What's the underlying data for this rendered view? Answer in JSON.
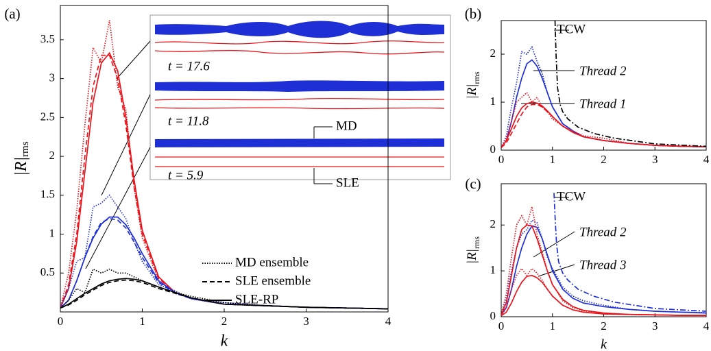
{
  "chart_data": [
    {
      "type": "line",
      "label": "(a)",
      "xlabel": "k",
      "ylabel": "|R|",
      "ylabel_sub": "rms",
      "x": [
        0,
        0.1,
        0.2,
        0.3,
        0.4,
        0.5,
        0.6,
        0.7,
        0.8,
        0.9,
        1.0,
        1.2,
        1.4,
        1.6,
        2,
        2.5,
        3,
        3.5,
        4
      ],
      "xlim": [
        0,
        4
      ],
      "ylim": [
        0,
        3.94
      ],
      "xticks": [
        0,
        1,
        2,
        3,
        4
      ],
      "yticks": [
        0.5,
        1,
        1.5,
        2,
        2.5,
        3,
        3.5
      ],
      "legend": [
        {
          "label": "MD ensemble",
          "dash": "dotted"
        },
        {
          "label": "SLE ensemble",
          "dash": "dashed"
        },
        {
          "label": "SLE-RP",
          "dash": "solid"
        }
      ],
      "annotations": [
        "t = 17.6",
        "t = 11.8",
        "t = 5.9",
        "MD",
        "SLE"
      ],
      "series": [
        {
          "color": "#e8141c",
          "dash": "solid",
          "values": [
            0.05,
            0.3,
            0.9,
            1.8,
            2.7,
            3.2,
            3.33,
            3.1,
            2.5,
            1.7,
            1.05,
            0.45,
            0.25,
            0.17,
            0.1,
            0.08,
            0.06,
            0.05,
            0.04
          ]
        },
        {
          "color": "#e8141c",
          "dash": "dashed",
          "values": [
            0.05,
            0.35,
            1.0,
            2.0,
            2.9,
            3.3,
            3.3,
            3.0,
            2.4,
            1.6,
            1.0,
            0.43,
            0.25,
            0.17,
            0.1,
            0.08,
            0.06,
            0.05,
            0.04
          ]
        },
        {
          "color": "#e8141c",
          "dash": "dotted",
          "values": [
            0.05,
            0.5,
            1.3,
            2.4,
            3.4,
            3.2,
            3.75,
            2.9,
            2.6,
            1.6,
            0.95,
            0.4,
            0.25,
            0.18,
            0.1,
            0.08,
            0.06,
            0.05,
            0.04
          ]
        },
        {
          "color": "#1f2fd6",
          "dash": "solid",
          "values": [
            0.05,
            0.15,
            0.4,
            0.7,
            0.95,
            1.13,
            1.22,
            1.22,
            1.12,
            0.95,
            0.75,
            0.4,
            0.25,
            0.17,
            0.1,
            0.08,
            0.06,
            0.05,
            0.04
          ]
        },
        {
          "color": "#1f2fd6",
          "dash": "dashed",
          "values": [
            0.05,
            0.15,
            0.4,
            0.7,
            0.97,
            1.15,
            1.2,
            1.18,
            1.08,
            0.9,
            0.7,
            0.38,
            0.24,
            0.17,
            0.1,
            0.08,
            0.06,
            0.05,
            0.04
          ]
        },
        {
          "color": "#1f2fd6",
          "dash": "dotted",
          "values": [
            0.05,
            0.3,
            0.65,
            0.7,
            1.35,
            1.4,
            1.5,
            1.35,
            1.2,
            0.9,
            0.65,
            0.35,
            0.27,
            0.17,
            0.12,
            0.08,
            0.06,
            0.05,
            0.04
          ]
        },
        {
          "color": "#000000",
          "dash": "solid",
          "values": [
            0.05,
            0.1,
            0.17,
            0.24,
            0.3,
            0.36,
            0.4,
            0.42,
            0.43,
            0.42,
            0.4,
            0.32,
            0.25,
            0.18,
            0.1,
            0.08,
            0.06,
            0.05,
            0.04
          ]
        },
        {
          "color": "#000000",
          "dash": "dashed",
          "values": [
            0.05,
            0.09,
            0.15,
            0.22,
            0.28,
            0.34,
            0.38,
            0.4,
            0.41,
            0.4,
            0.38,
            0.3,
            0.24,
            0.18,
            0.1,
            0.08,
            0.06,
            0.05,
            0.04
          ]
        },
        {
          "color": "#000000",
          "dash": "dotted",
          "values": [
            0.05,
            0.15,
            0.3,
            0.25,
            0.55,
            0.5,
            0.55,
            0.5,
            0.5,
            0.45,
            0.4,
            0.32,
            0.25,
            0.2,
            0.12,
            0.08,
            0.06,
            0.05,
            0.04
          ]
        }
      ]
    },
    {
      "type": "line",
      "label": "(b)",
      "ylabel": "|R|",
      "ylabel_sub": "rms",
      "x": [
        0,
        0.1,
        0.2,
        0.3,
        0.4,
        0.5,
        0.6,
        0.7,
        0.8,
        0.9,
        1.0,
        1.2,
        1.4,
        1.6,
        2,
        2.5,
        3,
        3.5,
        4
      ],
      "xlim": [
        0,
        4
      ],
      "ylim": [
        0,
        2.7
      ],
      "xticks": [
        0,
        1,
        2,
        3,
        4
      ],
      "yticks": [
        0,
        1,
        2
      ],
      "annotations": [
        "TCW",
        "Thread 2",
        "Thread 1"
      ],
      "series": [
        {
          "color": "#1f2fd6",
          "dash": "solid",
          "values": [
            0.05,
            0.2,
            0.6,
            1.1,
            1.5,
            1.8,
            1.88,
            1.75,
            1.5,
            1.2,
            0.9,
            0.55,
            0.4,
            0.28,
            0.2,
            0.14,
            0.1,
            0.08,
            0.07
          ]
        },
        {
          "color": "#1f2fd6",
          "dash": "dotted",
          "values": [
            0.05,
            0.3,
            0.9,
            1.4,
            2.05,
            2.0,
            2.15,
            1.85,
            1.6,
            1.2,
            0.9,
            0.55,
            0.4,
            0.28,
            0.2,
            0.14,
            0.1,
            0.08,
            0.07
          ]
        },
        {
          "color": "#e8141c",
          "dash": "solid",
          "values": [
            0.05,
            0.2,
            0.45,
            0.7,
            0.88,
            0.97,
            1.0,
            0.98,
            0.92,
            0.82,
            0.7,
            0.5,
            0.37,
            0.28,
            0.2,
            0.14,
            0.1,
            0.08,
            0.07
          ]
        },
        {
          "color": "#e8141c",
          "dash": "dashed",
          "values": [
            0.05,
            0.15,
            0.35,
            0.55,
            0.75,
            0.9,
            0.95,
            0.95,
            0.9,
            0.8,
            0.7,
            0.5,
            0.37,
            0.28,
            0.2,
            0.14,
            0.1,
            0.08,
            0.07
          ]
        },
        {
          "color": "#e8141c",
          "dash": "dotted",
          "values": [
            0.05,
            0.25,
            0.6,
            1.0,
            1.1,
            1.2,
            1.0,
            1.1,
            0.9,
            0.8,
            0.65,
            0.5,
            0.4,
            0.3,
            0.25,
            0.14,
            0.1,
            0.08,
            0.07
          ]
        },
        {
          "color": "#000000",
          "dash": "dashdot",
          "x": [
            1.05,
            1.07,
            1.1,
            1.15,
            1.2,
            1.3,
            1.5,
            1.8,
            2.2,
            3,
            4
          ],
          "values": [
            2.7,
            2.0,
            1.3,
            0.95,
            0.8,
            0.65,
            0.48,
            0.35,
            0.25,
            0.13,
            0.08
          ]
        }
      ]
    },
    {
      "type": "line",
      "label": "(c)",
      "xlabel": "k",
      "ylabel": "|R|",
      "ylabel_sub": "rms",
      "x": [
        0,
        0.1,
        0.2,
        0.3,
        0.4,
        0.5,
        0.6,
        0.7,
        0.8,
        0.9,
        1.0,
        1.2,
        1.4,
        1.6,
        2,
        2.5,
        3,
        3.5,
        4
      ],
      "xlim": [
        0,
        4
      ],
      "ylim": [
        0,
        2.9
      ],
      "xticks": [
        0,
        1,
        2,
        3,
        4
      ],
      "yticks": [
        0,
        1,
        2
      ],
      "annotations": [
        "TCW",
        "Thread 2",
        "Thread 3"
      ],
      "series": [
        {
          "color": "#1f2fd6",
          "dash": "solid",
          "values": [
            0.05,
            0.2,
            0.6,
            1.1,
            1.5,
            1.8,
            1.98,
            1.95,
            1.7,
            1.35,
            1.0,
            0.6,
            0.4,
            0.3,
            0.22,
            0.16,
            0.12,
            0.1,
            0.08
          ]
        },
        {
          "color": "#1f2fd6",
          "dash": "dotted",
          "values": [
            0.05,
            0.4,
            1.0,
            1.5,
            1.8,
            1.9,
            2.1,
            2.05,
            1.7,
            1.3,
            1.05,
            0.65,
            0.45,
            0.35,
            0.25,
            0.16,
            0.12,
            0.1,
            0.09
          ]
        },
        {
          "color": "#e8141c",
          "dash": "solid",
          "values": [
            0.05,
            0.3,
            0.9,
            1.5,
            1.9,
            2.0,
            1.98,
            1.7,
            1.35,
            1.0,
            0.7,
            0.38,
            0.22,
            0.14,
            0.08,
            0.05,
            0.04,
            0.03,
            0.03
          ]
        },
        {
          "color": "#e8141c",
          "dash": "dotted",
          "values": [
            0.05,
            0.5,
            1.3,
            2.0,
            2.2,
            2.0,
            2.4,
            1.8,
            1.4,
            1.0,
            0.7,
            0.35,
            0.2,
            0.13,
            0.08,
            0.05,
            0.04,
            0.03,
            0.03
          ]
        },
        {
          "color": "#e8141c",
          "dash": "solid",
          "values": [
            0.02,
            0.1,
            0.3,
            0.55,
            0.75,
            0.88,
            0.9,
            0.85,
            0.75,
            0.6,
            0.45,
            0.25,
            0.15,
            0.1,
            0.06,
            0.05,
            0.04,
            0.03,
            0.03
          ]
        },
        {
          "color": "#e8141c",
          "dash": "dotted",
          "values": [
            0.02,
            0.2,
            0.6,
            0.9,
            1.05,
            0.9,
            1.05,
            0.95,
            0.8,
            0.6,
            0.45,
            0.25,
            0.15,
            0.1,
            0.06,
            0.05,
            0.04,
            0.03,
            0.03
          ]
        },
        {
          "color": "#1f2fd6",
          "dash": "dashdot",
          "x": [
            1.03,
            1.05,
            1.08,
            1.12,
            1.2,
            1.3,
            1.5,
            1.8,
            2.2,
            3,
            4
          ],
          "values": [
            2.7,
            2.2,
            1.6,
            1.2,
            0.95,
            0.8,
            0.6,
            0.45,
            0.32,
            0.18,
            0.12
          ]
        }
      ]
    }
  ]
}
